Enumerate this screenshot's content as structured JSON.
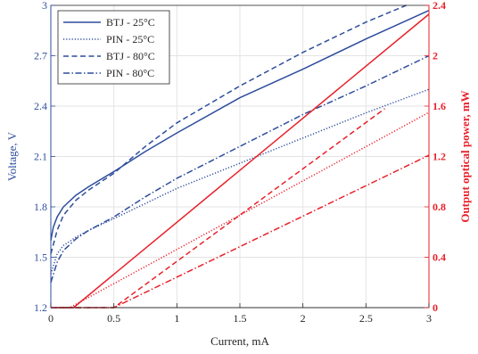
{
  "chart_data": {
    "type": "line",
    "xlabel": "Current, mA",
    "ylabel_left": "Voltage, V",
    "ylabel_right": "Output optical power, mW",
    "xlim": [
      0,
      3
    ],
    "ylim_left": [
      1.2,
      3
    ],
    "ylim_right": [
      0,
      2.4
    ],
    "x_ticks": [
      0,
      0.5,
      1,
      1.5,
      2,
      2.5,
      3
    ],
    "x_tick_labels": [
      "0",
      "0.5",
      "1",
      "1.5",
      "2",
      "2.5",
      "3"
    ],
    "y_left_ticks": [
      1.2,
      1.5,
      1.8,
      2.1,
      2.4,
      2.7,
      3
    ],
    "y_left_tick_labels": [
      "1.2",
      "1.5",
      "1.8",
      "2.1",
      "2.4",
      "2.7",
      "3"
    ],
    "y_right_ticks": [
      0,
      0.4,
      0.8,
      1.2,
      1.6,
      2,
      2.4
    ],
    "y_right_tick_labels": [
      "0",
      "0.4",
      "0.8",
      "1.2",
      "1.6",
      "2",
      "2.4"
    ],
    "grid": true,
    "legend_position": "top-left",
    "colors": {
      "voltage": "#2E4D9C",
      "power": "#E8212B",
      "axis_left": "#2E4D9C",
      "axis_right": "#E8212B",
      "grid": "#E3E3E3"
    },
    "series": [
      {
        "name": "BTJ - 25°C",
        "axis": "left",
        "style": "solid",
        "x": [
          0.0,
          0.02,
          0.05,
          0.1,
          0.2,
          0.3,
          0.5,
          0.75,
          1.0,
          1.5,
          2.0,
          2.5,
          3.0
        ],
        "y": [
          1.6,
          1.68,
          1.74,
          1.8,
          1.87,
          1.92,
          2.01,
          2.13,
          2.24,
          2.45,
          2.62,
          2.8,
          2.97
        ]
      },
      {
        "name": "PIN - 25°C",
        "axis": "left",
        "style": "dotted",
        "x": [
          0.0,
          0.05,
          0.1,
          0.2,
          0.3,
          0.5,
          0.75,
          1.0,
          1.5,
          2.0,
          2.5,
          3.0
        ],
        "y": [
          1.4,
          1.52,
          1.57,
          1.62,
          1.66,
          1.73,
          1.82,
          1.91,
          2.06,
          2.21,
          2.36,
          2.5
        ]
      },
      {
        "name": "BTJ - 80°C",
        "axis": "left",
        "style": "dashed",
        "x": [
          0.0,
          0.05,
          0.1,
          0.2,
          0.3,
          0.5,
          0.75,
          1.0,
          1.5,
          2.0,
          2.5,
          2.82
        ],
        "y": [
          1.52,
          1.66,
          1.75,
          1.84,
          1.9,
          2.0,
          2.16,
          2.3,
          2.52,
          2.72,
          2.9,
          3.0
        ]
      },
      {
        "name": "PIN - 80°C",
        "axis": "left",
        "style": "dashdot",
        "x": [
          0.0,
          0.05,
          0.1,
          0.2,
          0.3,
          0.5,
          0.75,
          1.0,
          1.5,
          2.0,
          2.5,
          3.0
        ],
        "y": [
          1.35,
          1.47,
          1.54,
          1.61,
          1.66,
          1.74,
          1.86,
          1.97,
          2.16,
          2.35,
          2.52,
          2.7
        ]
      },
      {
        "axis": "right",
        "style": "solid",
        "x": [
          0.0,
          0.18,
          3.0
        ],
        "y": [
          0.0,
          0.0,
          2.33
        ]
      },
      {
        "axis": "right",
        "style": "dotted",
        "x": [
          0.0,
          0.15,
          3.0
        ],
        "y": [
          0.0,
          0.0,
          1.55
        ]
      },
      {
        "axis": "right",
        "style": "dashed",
        "x": [
          0.0,
          0.5,
          2.65
        ],
        "y": [
          0.0,
          0.0,
          1.58
        ]
      },
      {
        "axis": "right",
        "style": "dashdot",
        "x": [
          0.0,
          0.5,
          3.0
        ],
        "y": [
          0.0,
          0.0,
          1.21
        ]
      }
    ]
  }
}
